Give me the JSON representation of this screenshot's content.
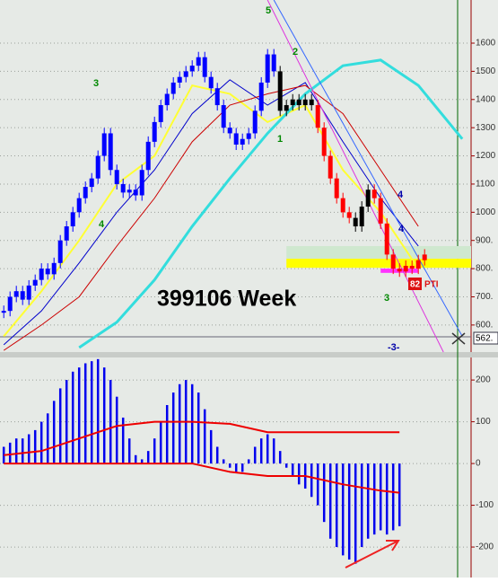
{
  "chart_data": [
    {
      "type": "stock",
      "title": "399106 Week",
      "x": [
        0,
        1,
        2,
        3,
        4,
        5,
        6,
        7,
        8,
        9,
        10,
        11,
        12,
        13,
        14,
        15,
        16,
        17,
        18,
        19,
        20,
        21,
        22,
        23,
        24,
        25,
        26,
        27,
        28,
        29,
        30,
        31,
        32,
        33,
        34,
        35,
        36,
        37,
        38,
        39,
        40,
        41,
        42,
        43,
        44,
        45,
        46,
        47,
        48,
        49,
        50,
        51,
        52,
        53,
        54,
        55,
        56,
        57,
        58,
        59,
        60,
        61,
        62,
        63,
        64,
        65,
        66,
        67
      ],
      "values": [
        650,
        700,
        720,
        690,
        740,
        760,
        800,
        780,
        820,
        900,
        950,
        1000,
        1050,
        1090,
        1120,
        1200,
        1280,
        1150,
        1100,
        1070,
        1080,
        1060,
        1150,
        1250,
        1320,
        1380,
        1420,
        1460,
        1480,
        1500,
        1520,
        1550,
        1480,
        1440,
        1380,
        1300,
        1280,
        1240,
        1260,
        1280,
        1360,
        1460,
        1560,
        1500,
        1360,
        1380,
        1400,
        1380,
        1400,
        1380,
        1300,
        1200,
        1120,
        1050,
        1000,
        980,
        950,
        1020,
        1080,
        1050,
        960,
        850,
        800,
        790,
        810,
        800,
        830,
        850
      ],
      "color_runs": [
        [
          0,
          "#0000ff"
        ],
        [
          44,
          "#000000"
        ],
        [
          50,
          "#ff0000"
        ],
        [
          56,
          "#000000"
        ],
        [
          59,
          "#ff0000"
        ]
      ],
      "lines": [
        {
          "color": "#ffff33",
          "width": 2,
          "x": [
            0,
            6,
            12,
            18,
            24,
            30,
            36,
            42,
            48,
            54,
            60,
            66
          ],
          "values": [
            560,
            720,
            900,
            1100,
            1200,
            1450,
            1420,
            1320,
            1380,
            1150,
            1000,
            800
          ]
        },
        {
          "color": "#0000cc",
          "width": 1,
          "x": [
            0,
            6,
            12,
            18,
            24,
            30,
            36,
            42,
            48,
            54,
            60,
            66
          ],
          "values": [
            530,
            650,
            820,
            1000,
            1150,
            1350,
            1470,
            1380,
            1460,
            1250,
            1050,
            880
          ]
        },
        {
          "color": "#cc0000",
          "width": 1,
          "x": [
            0,
            6,
            12,
            18,
            24,
            30,
            36,
            42,
            48,
            54,
            60,
            66
          ],
          "values": [
            510,
            600,
            700,
            880,
            1050,
            1250,
            1380,
            1420,
            1450,
            1350,
            1150,
            950
          ]
        },
        {
          "color": "#33dddd",
          "width": 3,
          "x": [
            12,
            18,
            24,
            30,
            36,
            42,
            48,
            54,
            60,
            66,
            73
          ],
          "values": [
            520,
            610,
            760,
            950,
            1120,
            1280,
            1420,
            1520,
            1540,
            1450,
            1260
          ]
        },
        {
          "color": "#dd33dd",
          "width": 1,
          "x": [
            42,
            70
          ],
          "values": [
            1753,
            504
          ]
        },
        {
          "color": "#3366ff",
          "width": 1,
          "x": [
            43,
            73
          ],
          "values": [
            1753,
            560
          ]
        }
      ],
      "bands": [
        {
          "color": "#cfe8cf",
          "x": [
            45,
            74.4
          ],
          "y": [
            835,
            880
          ]
        },
        {
          "color": "#ffff00",
          "x": [
            45,
            74.4
          ],
          "y": [
            803,
            835
          ]
        },
        {
          "color": "#ff33ff",
          "x": [
            60,
            66
          ],
          "y": [
            785,
            800
          ]
        }
      ],
      "annotations": [
        "3",
        "4",
        "5",
        "2",
        "1",
        "3",
        "-3-",
        "4",
        "4",
        "82",
        "PTI"
      ],
      "xlim": [
        -0.6,
        74.4
      ],
      "ylim": [
        504,
        1753
      ],
      "yticks": [
        {
          "value": 600,
          "label": "600."
        },
        {
          "value": 700,
          "label": "700."
        },
        {
          "value": 800,
          "label": "800."
        },
        {
          "value": 900,
          "label": "900."
        },
        1000,
        1100,
        1200,
        1300,
        1400,
        1500,
        1600
      ],
      "last_price": {
        "value": 562,
        "label": "562."
      },
      "grid": true
    },
    {
      "type": "histogram",
      "x": [
        0,
        1,
        2,
        3,
        4,
        5,
        6,
        7,
        8,
        9,
        10,
        11,
        12,
        13,
        14,
        15,
        16,
        17,
        18,
        19,
        20,
        21,
        22,
        23,
        24,
        25,
        26,
        27,
        28,
        29,
        30,
        31,
        32,
        33,
        34,
        35,
        36,
        37,
        38,
        39,
        40,
        41,
        42,
        43,
        44,
        45,
        46,
        47,
        48,
        49,
        50,
        51,
        52,
        53,
        54,
        55,
        56,
        57,
        58,
        59,
        60,
        61,
        62,
        63
      ],
      "values": [
        40,
        50,
        60,
        60,
        70,
        80,
        100,
        120,
        150,
        180,
        200,
        220,
        230,
        240,
        245,
        250,
        230,
        200,
        160,
        110,
        60,
        20,
        10,
        30,
        60,
        100,
        140,
        170,
        190,
        200,
        190,
        170,
        130,
        80,
        40,
        10,
        -10,
        -20,
        -20,
        10,
        40,
        60,
        70,
        60,
        30,
        -10,
        -30,
        -50,
        -60,
        -80,
        -100,
        -140,
        -180,
        -200,
        -220,
        -230,
        -240,
        -200,
        -180,
        -170,
        -160,
        -170,
        -160,
        -150
      ],
      "color": "#0000ee",
      "lines": [
        {
          "color": "#ee0000",
          "width": 2,
          "x": [
            0,
            6,
            12,
            18,
            24,
            30,
            36,
            42,
            48,
            54,
            60,
            63
          ],
          "values": [
            20,
            30,
            60,
            90,
            100,
            100,
            95,
            75,
            75,
            75,
            75,
            75
          ]
        },
        {
          "color": "#ee0000",
          "width": 2,
          "x": [
            0,
            6,
            12,
            18,
            24,
            30,
            36,
            42,
            48,
            54,
            60,
            63
          ],
          "values": [
            0,
            0,
            0,
            0,
            0,
            0,
            -20,
            -30,
            -30,
            -50,
            -65,
            -70
          ]
        }
      ],
      "xlim": [
        -0.6,
        74.4
      ],
      "ylim": [
        -273,
        254
      ],
      "yticks": [
        200,
        100,
        0,
        -100,
        -200
      ],
      "grid": true
    }
  ]
}
